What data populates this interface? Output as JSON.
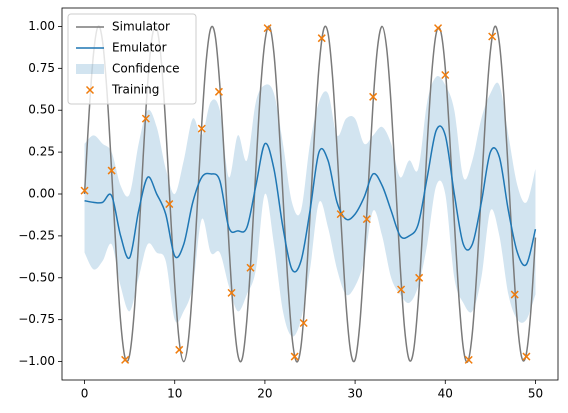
{
  "chart_data": {
    "type": "line",
    "xlim": [
      -2.5,
      52.5
    ],
    "ylim": [
      -1.11,
      1.11
    ],
    "xticks": [
      0,
      10,
      20,
      30,
      40,
      50
    ],
    "yticks": [
      {
        "value": -1,
        "label": "−1.00"
      },
      {
        "value": -0.75,
        "label": "−0.75"
      },
      {
        "value": -0.5,
        "label": "−0.50"
      },
      {
        "value": -0.25,
        "label": "−0.25"
      },
      {
        "value": 0,
        "label": "0.00"
      },
      {
        "value": 0.25,
        "label": "0.25"
      },
      {
        "value": 0.5,
        "label": "0.50"
      },
      {
        "value": 0.75,
        "label": "0.75"
      },
      {
        "value": 1,
        "label": "1.00"
      }
    ],
    "legend": "upper left",
    "series": [
      {
        "name": "Simulator",
        "type": "line",
        "color": "#7a7a7a",
        "x": [
          0,
          0.5,
          1,
          1.5,
          2,
          2.5,
          3,
          3.5,
          4,
          4.5,
          5,
          5.5,
          6,
          6.5,
          7,
          7.5,
          8,
          8.5,
          9,
          9.5,
          10,
          10.5,
          11,
          11.5,
          12,
          12.5,
          13,
          13.5,
          14,
          14.5,
          15,
          15.5,
          16,
          16.5,
          17,
          17.5,
          18,
          18.5,
          19,
          19.5,
          20,
          20.5,
          21,
          21.5,
          22,
          22.5,
          23,
          23.5,
          24,
          24.5,
          25,
          25.5,
          26,
          26.5,
          27,
          27.5,
          28,
          28.5,
          29,
          29.5,
          30,
          30.5,
          31,
          31.5,
          32,
          32.5,
          33,
          33.5,
          34,
          34.5,
          35,
          35.5,
          36,
          36.5,
          37,
          37.5,
          38,
          38.5,
          39,
          39.5,
          40,
          40.5,
          41,
          41.5,
          42,
          42.5,
          43,
          43.5,
          44,
          44.5,
          45,
          45.5,
          46,
          46.5,
          47,
          47.5,
          48,
          48.5,
          49,
          49.5,
          50
        ],
        "values": [
          0,
          0.48,
          0.84,
          1.0,
          0.91,
          0.6,
          0.14,
          -0.35,
          -0.76,
          -0.98,
          -0.96,
          -0.71,
          -0.28,
          0.22,
          0.66,
          0.94,
          0.99,
          0.8,
          0.41,
          -0.08,
          -0.54,
          -0.88,
          -1.0,
          -0.88,
          -0.54,
          -0.07,
          0.42,
          0.8,
          0.99,
          0.94,
          0.65,
          0.21,
          -0.29,
          -0.71,
          -0.96,
          -0.98,
          -0.75,
          -0.34,
          0.15,
          0.61,
          0.91,
          1.0,
          0.84,
          0.47,
          -0.01,
          -0.49,
          -0.85,
          -1.0,
          -0.91,
          -0.59,
          -0.13,
          0.36,
          0.76,
          0.98,
          0.96,
          0.7,
          0.27,
          -0.22,
          -0.66,
          -0.94,
          -0.99,
          -0.79,
          -0.4,
          0.08,
          0.55,
          0.88,
          1.0,
          0.87,
          0.53,
          0.06,
          -0.43,
          -0.81,
          -0.99,
          -0.93,
          -0.64,
          -0.2,
          0.3,
          0.72,
          0.96,
          0.97,
          0.75,
          0.33,
          -0.16,
          -0.61,
          -0.92,
          -1.0,
          -0.83,
          -0.46,
          0.02,
          0.5,
          0.85,
          1.0,
          0.9,
          0.58,
          0.12,
          -0.37,
          -0.77,
          -0.98,
          -0.95,
          -0.69,
          -0.26
        ]
      },
      {
        "name": "Emulator",
        "type": "line",
        "color": "#1f77b4",
        "x": [
          0,
          1,
          2,
          3,
          4,
          5,
          6,
          7,
          8,
          9,
          10,
          11,
          12,
          13,
          14,
          15,
          16,
          17,
          18,
          19,
          20,
          21,
          22,
          23,
          24,
          25,
          26,
          27,
          28,
          29,
          30,
          31,
          32,
          33,
          34,
          35,
          36,
          37,
          38,
          39,
          40,
          41,
          42,
          43,
          44,
          45,
          46,
          47,
          48,
          49,
          50
        ],
        "values": [
          -0.04,
          -0.05,
          -0.05,
          -0.01,
          -0.25,
          -0.38,
          -0.1,
          0.1,
          0.0,
          -0.12,
          -0.37,
          -0.3,
          -0.05,
          0.1,
          0.12,
          0.08,
          -0.2,
          -0.22,
          -0.2,
          0.05,
          0.3,
          0.15,
          -0.2,
          -0.45,
          -0.4,
          -0.1,
          0.25,
          0.2,
          -0.05,
          -0.15,
          -0.12,
          -0.02,
          0.12,
          0.05,
          -0.1,
          -0.25,
          -0.25,
          -0.18,
          0.1,
          0.38,
          0.35,
          0.0,
          -0.3,
          -0.3,
          -0.05,
          0.25,
          0.22,
          -0.1,
          -0.35,
          -0.42,
          -0.21
        ]
      },
      {
        "name": "Confidence",
        "type": "area",
        "color": "#1f77b4",
        "x": [
          0,
          1,
          2,
          3,
          4,
          5,
          6,
          7,
          8,
          9,
          10,
          11,
          12,
          13,
          14,
          15,
          16,
          17,
          18,
          19,
          20,
          21,
          22,
          23,
          24,
          25,
          26,
          27,
          28,
          29,
          30,
          31,
          32,
          33,
          34,
          35,
          36,
          37,
          38,
          39,
          40,
          41,
          42,
          43,
          44,
          45,
          46,
          47,
          48,
          49,
          50
        ],
        "upper": [
          0.3,
          0.35,
          0.3,
          0.25,
          0.05,
          0.0,
          0.3,
          0.5,
          0.4,
          0.15,
          0.0,
          0.2,
          0.45,
          0.35,
          0.55,
          0.5,
          0.1,
          0.35,
          0.2,
          0.55,
          0.65,
          0.6,
          0.3,
          -0.05,
          -0.1,
          0.3,
          0.55,
          0.6,
          0.35,
          0.45,
          0.45,
          0.3,
          0.35,
          0.4,
          0.3,
          0.1,
          0.2,
          0.15,
          0.55,
          0.7,
          0.65,
          0.5,
          0.1,
          0.2,
          0.45,
          0.6,
          0.65,
          0.35,
          0.05,
          -0.05,
          0.15
        ],
        "lower": [
          -0.35,
          -0.45,
          -0.4,
          -0.3,
          -0.55,
          -0.7,
          -0.5,
          -0.3,
          -0.35,
          -0.4,
          -0.75,
          -0.7,
          -0.55,
          -0.15,
          -0.35,
          -0.35,
          -0.55,
          -0.7,
          -0.6,
          -0.45,
          0.0,
          -0.3,
          -0.7,
          -0.85,
          -0.75,
          -0.45,
          -0.05,
          -0.2,
          -0.45,
          -0.6,
          -0.55,
          -0.4,
          -0.1,
          -0.25,
          -0.5,
          -0.6,
          -0.65,
          -0.55,
          -0.3,
          0.05,
          0.0,
          -0.5,
          -0.65,
          -0.7,
          -0.5,
          -0.1,
          -0.25,
          -0.6,
          -0.75,
          -0.75,
          -0.6
        ]
      },
      {
        "name": "Training",
        "type": "scatter",
        "color": "#f07c0c",
        "x": [
          0,
          3.0,
          4.5,
          6.8,
          9.4,
          10.5,
          13.0,
          14.9,
          16.3,
          18.4,
          20.3,
          23.3,
          24.3,
          26.3,
          28.4,
          31.3,
          32.0,
          35.1,
          37.1,
          39.2,
          40.0,
          42.6,
          45.2,
          47.7,
          49.0
        ],
        "values": [
          0.02,
          0.14,
          -0.99,
          0.45,
          -0.06,
          -0.93,
          0.39,
          0.61,
          -0.59,
          -0.44,
          0.99,
          -0.97,
          -0.77,
          0.93,
          -0.12,
          -0.15,
          0.58,
          -0.57,
          -0.5,
          0.99,
          0.71,
          -0.99,
          0.94,
          -0.6,
          -0.97
        ]
      }
    ]
  }
}
